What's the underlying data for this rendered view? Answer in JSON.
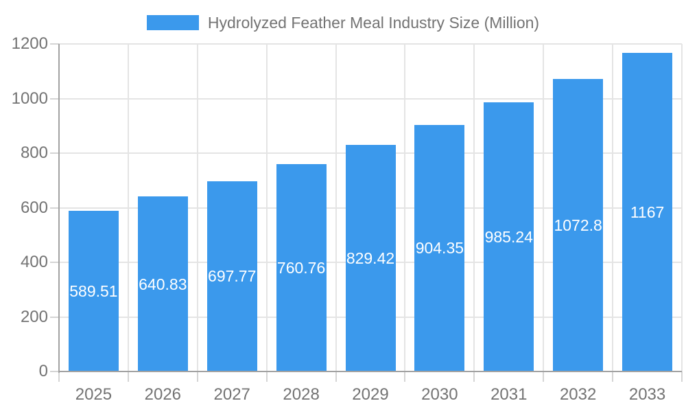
{
  "chart_data": {
    "type": "bar",
    "title": "Hydrolyzed Feather Meal Industry Size (Million)",
    "legend_entries": [
      "Hydrolyzed Feather Meal Industry Size (Million)"
    ],
    "legend_position": "top",
    "categories": [
      "2025",
      "2026",
      "2027",
      "2028",
      "2029",
      "2030",
      "2031",
      "2032",
      "2033"
    ],
    "values": [
      589.51,
      640.83,
      697.77,
      760.76,
      829.42,
      904.35,
      985.24,
      1072.8,
      1167
    ],
    "value_labels": [
      "589.51",
      "640.83",
      "697.77",
      "760.76",
      "829.42",
      "904.35",
      "985.24",
      "1072.8",
      "1167"
    ],
    "xlabel": "",
    "ylabel": "",
    "ylim": [
      0,
      1200
    ],
    "y_ticks": [
      0,
      200,
      400,
      600,
      800,
      1000,
      1200
    ],
    "y_tick_labels": [
      "0",
      "200",
      "400",
      "600",
      "800",
      "1000",
      "1200"
    ],
    "grid": true,
    "colors": {
      "bar": "#3b99ec",
      "axis": "#a2a2a2",
      "grid": "#e4e4e4",
      "tick": "#d4d4d4",
      "tick_label": "#737373",
      "legend_text": "#737373",
      "value_label": "#ffffff",
      "background": "#ffffff"
    }
  },
  "legend": {
    "label": "Hydrolyzed Feather Meal Industry Size (Million)"
  }
}
